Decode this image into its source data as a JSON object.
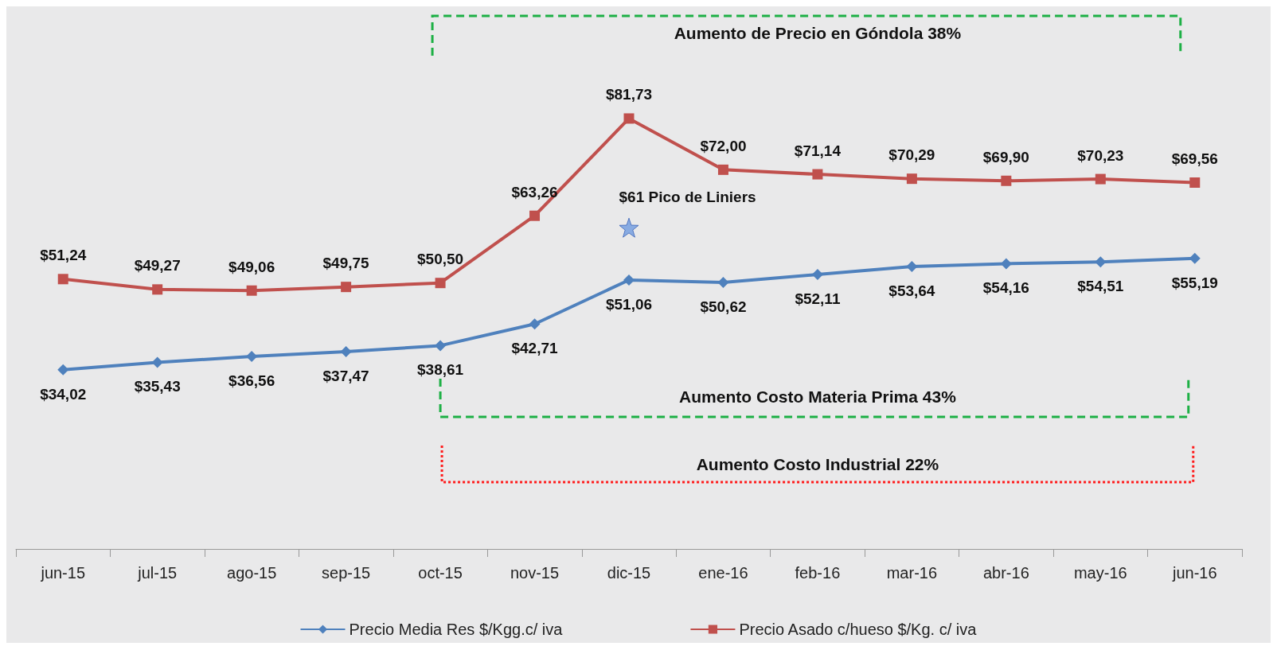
{
  "chart_data": {
    "type": "line",
    "categories": [
      "jun-15",
      "jul-15",
      "ago-15",
      "sep-15",
      "oct-15",
      "nov-15",
      "dic-15",
      "ene-16",
      "feb-16",
      "mar-16",
      "abr-16",
      "may-16",
      "jun-16"
    ],
    "series": [
      {
        "name": "Precio Media Res $/Kgg.c/ iva",
        "color": "#4f81bd",
        "marker": "diamond",
        "values": [
          34.02,
          35.43,
          36.56,
          37.47,
          38.61,
          42.71,
          51.06,
          50.62,
          52.11,
          53.64,
          54.16,
          54.51,
          55.19
        ],
        "value_labels": [
          "$34,02",
          "$35,43",
          "$36,56",
          "$37,47",
          "$38,61",
          "$42,71",
          "$51,06",
          "$50,62",
          "$52,11",
          "$53,64",
          "$54,16",
          "$54,51",
          "$55,19"
        ]
      },
      {
        "name": "Precio Asado c/hueso $/Kg. c/ iva",
        "color": "#c0504d",
        "marker": "square",
        "values": [
          51.24,
          49.27,
          49.06,
          49.75,
          50.5,
          63.26,
          81.73,
          72.0,
          71.14,
          70.29,
          69.9,
          70.23,
          69.56
        ],
        "value_labels": [
          "$51,24",
          "$49,27",
          "$49,06",
          "$49,75",
          "$50,50",
          "$63,26",
          "$81,73",
          "$72,00",
          "$71,14",
          "$70,29",
          "$69,90",
          "$70,23",
          "$69,56"
        ]
      }
    ],
    "annotations": [
      {
        "text": "$61 Pico de Liniers",
        "x": "dic-15",
        "y": 61
      },
      "Aumento de Precio en Góndola 38%",
      "Aumento Costo Materia Prima 43%",
      "Aumento Costo Industrial 22%"
    ],
    "legend": "bottom",
    "grid": false
  }
}
